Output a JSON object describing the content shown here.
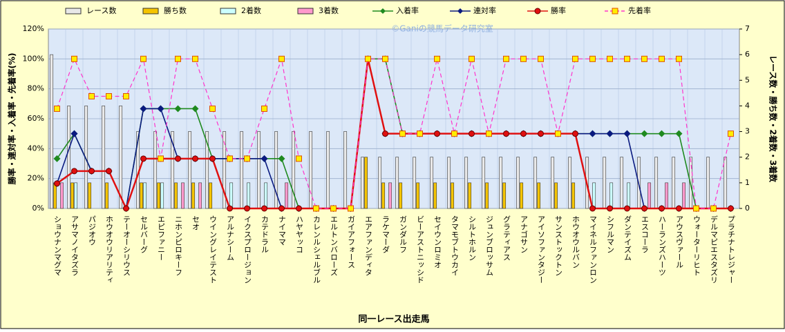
{
  "chart_data": {
    "type": "bar-line",
    "annotation": "©Ganiの競馬データ研究室",
    "x_label": "同一レース出走馬",
    "y_label": "勝率・連対率・入着率・先着率(%)",
    "y2_label": "レース数・勝ち数・2着数・3着数",
    "grid": true,
    "legend": "top",
    "categories": [
      "ショウナンマグマ",
      "アサマノイタズラ",
      "パジオウ",
      "ホウオウリアリティ",
      "テーオーシリウス",
      "セルバーグ",
      "エピファニー",
      "ニホンピロキーフ",
      "セオ",
      "ウイングレイテスト",
      "アルナシーム",
      "イクスプロージョン",
      "カテドラル",
      "ナイママ",
      "ハヤヤッコ",
      "カレンルシェルブル",
      "エルトンバローズ",
      "ガイアフォース",
      "エアファンディタ",
      "ラケマーダ",
      "ガンダルフ",
      "ビーアストニッシド",
      "セイウンロミオ",
      "タマモブトウカイ",
      "シルトホルン",
      "ジュンブロッサム",
      "グラティアス",
      "アナゴサン",
      "アイソファンタジー",
      "サンストックトン",
      "ホウオウルバン",
      "マイネルファンロン",
      "シフルマン",
      "ダンテイズム",
      "エスコーラ",
      "ハーランズハーツ",
      "アウスヴァール",
      "ウォーターリヒト",
      "デルマピエスタズリ",
      "プラチナトレジャー"
    ],
    "ylim": [
      0,
      120
    ],
    "yticks": [
      {
        "value": 0,
        "label": "0%"
      },
      {
        "value": 20,
        "label": "20%"
      },
      {
        "value": 40,
        "label": "40%"
      },
      {
        "value": 60,
        "label": "60%"
      },
      {
        "value": 80,
        "label": "80%"
      },
      {
        "value": 100,
        "label": "100%"
      },
      {
        "value": 120,
        "label": "120%"
      }
    ],
    "y2lim": [
      0,
      7
    ],
    "y2ticks": [
      0,
      1,
      2,
      3,
      4,
      5,
      6,
      7
    ],
    "series": [
      {
        "name": "レース数",
        "kind": "bar",
        "axis": "y2",
        "color": "#e8e8e8",
        "values": [
          6,
          4,
          4,
          4,
          4,
          3,
          3,
          3,
          3,
          3,
          3,
          3,
          3,
          3,
          3,
          3,
          3,
          3,
          2,
          2,
          2,
          2,
          2,
          2,
          2,
          2,
          2,
          2,
          2,
          2,
          2,
          2,
          2,
          2,
          2,
          2,
          2,
          2,
          2,
          2
        ]
      },
      {
        "name": "勝ち数",
        "kind": "bar",
        "axis": "y2",
        "color": "#f5c400",
        "values": [
          1,
          1,
          1,
          1,
          0,
          1,
          1,
          1,
          1,
          1,
          0,
          0,
          0,
          0,
          0,
          0,
          0,
          0,
          2,
          1,
          1,
          1,
          1,
          1,
          1,
          1,
          1,
          1,
          1,
          1,
          1,
          0,
          0,
          0,
          0,
          0,
          0,
          0,
          0,
          0
        ]
      },
      {
        "name": "2着数",
        "kind": "bar",
        "axis": "y2",
        "color": "#ccffff",
        "values": [
          0,
          1,
          0,
          0,
          0,
          1,
          1,
          0,
          0,
          0,
          1,
          1,
          1,
          0,
          0,
          0,
          0,
          0,
          0,
          0,
          0,
          0,
          0,
          0,
          0,
          0,
          0,
          0,
          0,
          0,
          0,
          1,
          1,
          1,
          0,
          0,
          0,
          0,
          0,
          0
        ]
      },
      {
        "name": "3着数",
        "kind": "bar",
        "axis": "y2",
        "color": "#ff99cc",
        "values": [
          1,
          0,
          0,
          0,
          0,
          0,
          0,
          1,
          1,
          0,
          0,
          0,
          0,
          1,
          0,
          0,
          0,
          0,
          0,
          1,
          0,
          0,
          0,
          0,
          0,
          0,
          0,
          0,
          0,
          0,
          0,
          0,
          0,
          0,
          1,
          1,
          1,
          0,
          0,
          0
        ]
      },
      {
        "name": "入着率",
        "kind": "line",
        "color": "#1f8a1f",
        "marker": "diamond",
        "values": [
          33.3,
          50,
          25,
          25,
          0,
          66.7,
          66.7,
          66.7,
          66.7,
          33.3,
          33.3,
          33.3,
          33.3,
          33.3,
          0,
          0,
          0,
          0,
          100,
          100,
          50,
          50,
          50,
          50,
          50,
          50,
          50,
          50,
          50,
          50,
          50,
          50,
          50,
          50,
          50,
          50,
          50,
          0,
          0,
          0
        ]
      },
      {
        "name": "連対率",
        "kind": "line",
        "color": "#0a1a80",
        "marker": "diamond",
        "values": [
          16.7,
          50,
          25,
          25,
          0,
          66.7,
          66.7,
          33.3,
          33.3,
          33.3,
          33.3,
          33.3,
          33.3,
          0,
          0,
          0,
          0,
          0,
          100,
          50,
          50,
          50,
          50,
          50,
          50,
          50,
          50,
          50,
          50,
          50,
          50,
          50,
          50,
          50,
          0,
          0,
          0,
          0,
          0,
          0
        ]
      },
      {
        "name": "勝率",
        "kind": "line",
        "color": "#e01010",
        "marker": "circle",
        "values": [
          16.7,
          25,
          25,
          25,
          0,
          33.3,
          33.3,
          33.3,
          33.3,
          33.3,
          0,
          0,
          0,
          0,
          0,
          0,
          0,
          0,
          100,
          50,
          50,
          50,
          50,
          50,
          50,
          50,
          50,
          50,
          50,
          50,
          50,
          0,
          0,
          0,
          0,
          0,
          0,
          0,
          0,
          0
        ]
      },
      {
        "name": "先着率",
        "kind": "line",
        "color": "#ff33cc",
        "marker": "square",
        "marker_fill": "#ffee00",
        "dash": true,
        "values": [
          66.7,
          100,
          75,
          75,
          75,
          100,
          33.3,
          100,
          100,
          66.7,
          33.3,
          33.3,
          66.7,
          100,
          33.3,
          0,
          0,
          0,
          100,
          100,
          50,
          50,
          100,
          50,
          100,
          50,
          100,
          100,
          100,
          50,
          100,
          100,
          100,
          100,
          100,
          100,
          100,
          0,
          0,
          50
        ]
      }
    ]
  }
}
